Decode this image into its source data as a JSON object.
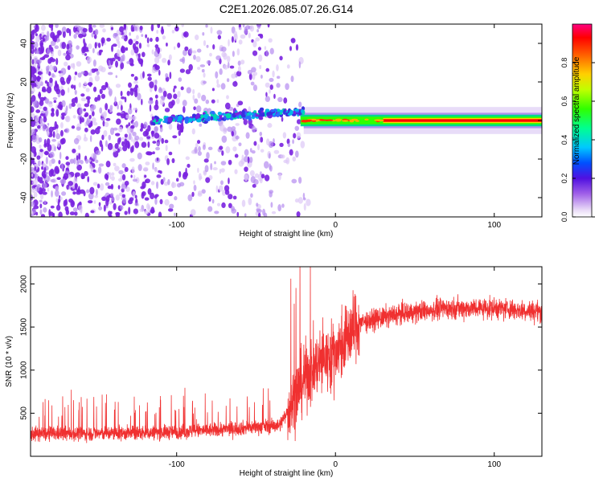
{
  "title": "C2E1.2026.085.07.26.G14",
  "colors": {
    "snr_line": "#f03030",
    "spectrogram_noise": "#7a22e0",
    "spectrogram_noise_faint": "#cdb0f0",
    "axes": "#000000"
  },
  "chart_data": [
    {
      "type": "heatmap",
      "name": "spectrogram",
      "xlabel": "Height of straight line (km)",
      "ylabel": "Frequency (Hz)",
      "xlim": [
        -192,
        130
      ],
      "ylim": [
        -50,
        50
      ],
      "xticks": [
        -100,
        0,
        100
      ],
      "xtick_labels": [
        "-100",
        "0",
        "100"
      ],
      "yticks": [
        -40,
        -20,
        0,
        20,
        40
      ],
      "ytick_labels": [
        "-40",
        "-20",
        "0",
        "20",
        "40"
      ],
      "colorbar": {
        "label": "Normalized spectral amplitude",
        "range": [
          0.0,
          1.0
        ],
        "ticks": [
          0.0,
          0.2,
          0.4,
          0.6,
          0.8
        ],
        "tick_labels": [
          "0.0",
          "0.2",
          "0.4",
          "0.6",
          "0.8"
        ]
      },
      "description_values": {
        "signal_center_hz": 0,
        "noise_region_km": [
          -192,
          -40
        ],
        "strong_signal_region_km": [
          -20,
          130
        ]
      }
    },
    {
      "type": "line",
      "name": "snr",
      "xlabel": "Height of straight line (km)",
      "ylabel": "SNR (10 * v/v)",
      "xlim": [
        -192,
        130
      ],
      "ylim": [
        0,
        2200
      ],
      "xticks": [
        -100,
        0,
        100
      ],
      "xtick_labels": [
        "-100",
        "0",
        "100"
      ],
      "yticks": [
        500,
        1000,
        1500,
        2000
      ],
      "ytick_labels": [
        "500",
        "1000",
        "1500",
        "2000"
      ],
      "trend": [
        {
          "x": -192,
          "y": 260
        },
        {
          "x": -120,
          "y": 270
        },
        {
          "x": -80,
          "y": 300
        },
        {
          "x": -50,
          "y": 340
        },
        {
          "x": -35,
          "y": 360
        },
        {
          "x": -28,
          "y": 600
        },
        {
          "x": -20,
          "y": 900
        },
        {
          "x": -10,
          "y": 1100
        },
        {
          "x": 0,
          "y": 1200
        },
        {
          "x": 8,
          "y": 1400
        },
        {
          "x": 15,
          "y": 1550
        },
        {
          "x": 40,
          "y": 1650
        },
        {
          "x": 70,
          "y": 1720
        },
        {
          "x": 100,
          "y": 1720
        },
        {
          "x": 130,
          "y": 1680
        }
      ]
    }
  ]
}
